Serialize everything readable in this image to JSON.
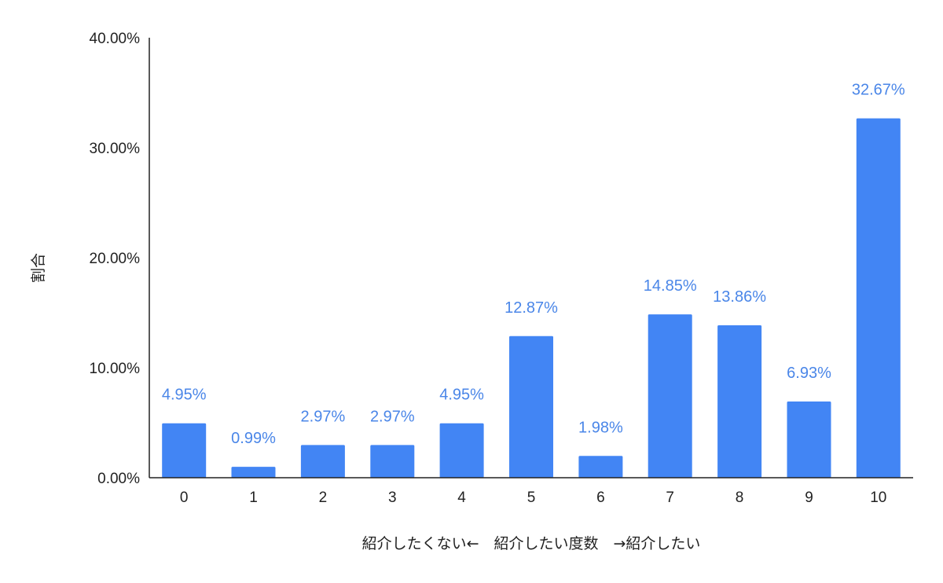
{
  "chart_data": {
    "type": "bar",
    "categories": [
      "0",
      "1",
      "2",
      "3",
      "4",
      "5",
      "6",
      "7",
      "8",
      "9",
      "10"
    ],
    "values": [
      4.95,
      0.99,
      2.97,
      2.97,
      4.95,
      12.87,
      1.98,
      14.85,
      13.86,
      6.93,
      32.67
    ],
    "data_labels": [
      "4.95%",
      "0.99%",
      "2.97%",
      "2.97%",
      "4.95%",
      "12.87%",
      "1.98%",
      "14.85%",
      "13.86%",
      "6.93%",
      "32.67%"
    ],
    "xlabel": "紹介したくない←　紹介したい度数　→紹介したい",
    "ylabel": "割合",
    "ylim": [
      0,
      40
    ],
    "yticks": [
      0,
      10,
      20,
      30,
      40
    ],
    "ytick_labels": [
      "0.00%",
      "10.00%",
      "20.00%",
      "30.00%",
      "40.00%"
    ],
    "grid": false,
    "legend": "none",
    "colors": {
      "bar": "#4285f4",
      "label": "#4a86e8",
      "axis": "#222222"
    }
  }
}
